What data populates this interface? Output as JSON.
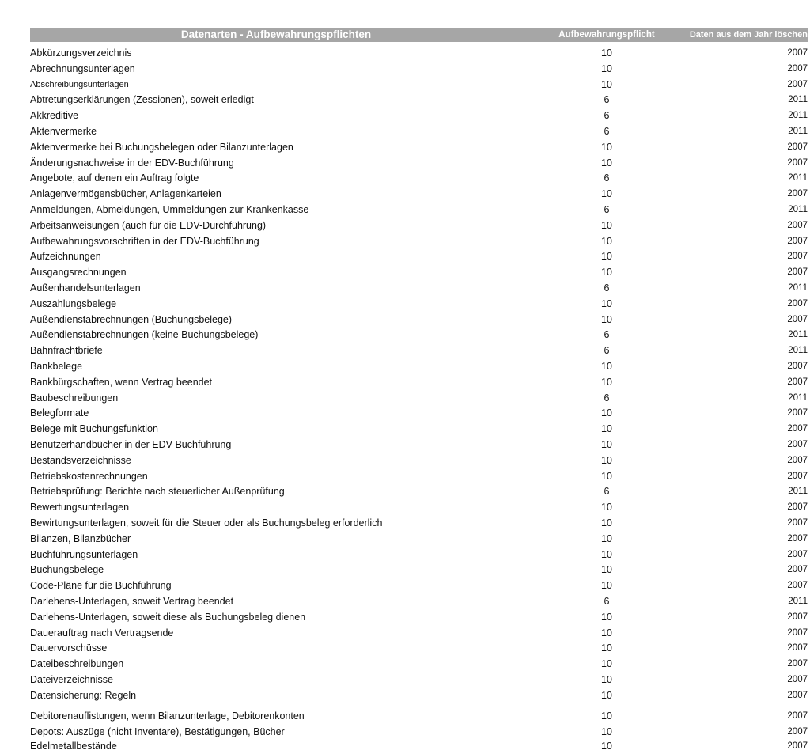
{
  "header": {
    "title": "Datenarten - Aufbewahrungspflichten",
    "col_retention": "Aufbewahrungspflicht",
    "col_delete_year": "Daten aus dem Jahr löschen",
    "background_color": "#a6a6a6"
  },
  "rows": [
    {
      "name": "Abkürzungsverzeichnis",
      "years": "10",
      "delete": "2007"
    },
    {
      "name": "Abrechnungsunterlagen",
      "years": "10",
      "delete": "2007"
    },
    {
      "name": "Abschreibungsunterlagen",
      "years": "10",
      "delete": "2007"
    },
    {
      "name": "Abtretungserklärungen (Zessionen), soweit erledigt",
      "years": "6",
      "delete": "2011"
    },
    {
      "name": "Akkreditive",
      "years": "6",
      "delete": "2011"
    },
    {
      "name": "Aktenvermerke",
      "years": "6",
      "delete": "2011"
    },
    {
      "name": "Aktenvermerke bei Buchungsbelegen oder Bilanzunterlagen",
      "years": "10",
      "delete": "2007"
    },
    {
      "name": "Änderungsnachweise in der EDV-Buchführung",
      "years": "10",
      "delete": "2007"
    },
    {
      "name": "Angebote, auf denen ein Auftrag folgte",
      "years": "6",
      "delete": "2011"
    },
    {
      "name": "Anlagenvermögensbücher, Anlagenkarteien",
      "years": "10",
      "delete": "2007"
    },
    {
      "name": "Anmeldungen, Abmeldungen, Ummeldungen zur Krankenkasse",
      "years": "6",
      "delete": "2011"
    },
    {
      "name": "Arbeitsanweisungen (auch für die EDV-Durchführung)",
      "years": "10",
      "delete": "2007"
    },
    {
      "name": "Aufbewahrungsvorschriften in der EDV-Buchführung",
      "years": "10",
      "delete": "2007"
    },
    {
      "name": "Aufzeichnungen",
      "years": "10",
      "delete": "2007"
    },
    {
      "name": "Ausgangsrechnungen",
      "years": "10",
      "delete": "2007"
    },
    {
      "name": "Außenhandelsunterlagen",
      "years": "6",
      "delete": "2011"
    },
    {
      "name": "Auszahlungsbelege",
      "years": "10",
      "delete": "2007"
    },
    {
      "name": "Außendienstabrechnungen (Buchungsbelege)",
      "years": "10",
      "delete": "2007"
    },
    {
      "name": "Außendienstabrechnungen (keine Buchungsbelege)",
      "years": "6",
      "delete": "2011"
    },
    {
      "name": "Bahnfrachtbriefe",
      "years": "6",
      "delete": "2011"
    },
    {
      "name": "Bankbelege",
      "years": "10",
      "delete": "2007"
    },
    {
      "name": "Bankbürgschaften, wenn Vertrag beendet",
      "years": "10",
      "delete": "2007"
    },
    {
      "name": "Baubeschreibungen",
      "years": "6",
      "delete": "2011"
    },
    {
      "name": "Belegformate",
      "years": "10",
      "delete": "2007"
    },
    {
      "name": "Belege mit Buchungsfunktion",
      "years": "10",
      "delete": "2007"
    },
    {
      "name": "Benutzerhandbücher in der EDV-Buchführung",
      "years": "10",
      "delete": "2007"
    },
    {
      "name": "Bestandsverzeichnisse",
      "years": "10",
      "delete": "2007"
    },
    {
      "name": "Betriebskostenrechnungen",
      "years": "10",
      "delete": "2007"
    },
    {
      "name": "Betriebsprüfung: Berichte nach steuerlicher Außenprüfung",
      "years": "6",
      "delete": "2011"
    },
    {
      "name": "Bewertungsunterlagen",
      "years": "10",
      "delete": "2007"
    },
    {
      "name": "Bewirtungsunterlagen, soweit für die Steuer oder als Buchungsbeleg erforderlich",
      "years": "10",
      "delete": "2007"
    },
    {
      "name": "Bilanzen, Bilanzbücher",
      "years": "10",
      "delete": "2007"
    },
    {
      "name": "Buchführungsunterlagen",
      "years": "10",
      "delete": "2007"
    },
    {
      "name": "Buchungsbelege",
      "years": "10",
      "delete": "2007"
    },
    {
      "name": "Code-Pläne für die Buchführung",
      "years": "10",
      "delete": "2007"
    },
    {
      "name": "Darlehens-Unterlagen, soweit Vertrag beendet",
      "years": "6",
      "delete": "2011"
    },
    {
      "name": "Darlehens-Unterlagen, soweit diese als Buchungsbeleg dienen",
      "years": "10",
      "delete": "2007"
    },
    {
      "name": "Dauerauftrag nach Vertragsende",
      "years": "10",
      "delete": "2007"
    },
    {
      "name": "Dauervorschüsse",
      "years": "10",
      "delete": "2007"
    },
    {
      "name": "Dateibeschreibungen",
      "years": "10",
      "delete": "2007"
    },
    {
      "name": "Dateiverzeichnisse",
      "years": "10",
      "delete": "2007"
    },
    {
      "name": "Datensicherung: Regeln",
      "years": "10",
      "delete": "2007"
    },
    {
      "name": "Debitorenauflistungen, wenn Bilanzunterlage, Debitorenkonten",
      "years": "10",
      "delete": "2007"
    },
    {
      "name": "Depots: Auszüge (nicht Inventare), Bestätigungen, Bücher",
      "years": "10",
      "delete": "2007"
    },
    {
      "name": "Edelmetallbestände",
      "years": "10",
      "delete": "2007"
    }
  ]
}
